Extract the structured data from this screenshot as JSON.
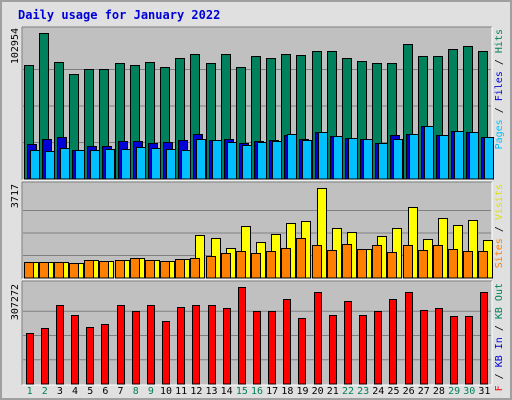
{
  "chart_data": [
    {
      "type": "bar",
      "title": "Daily usage for January 2022",
      "categories": [
        "1",
        "2",
        "3",
        "4",
        "5",
        "6",
        "7",
        "8",
        "9",
        "10",
        "11",
        "12",
        "13",
        "14",
        "15",
        "16",
        "17",
        "18",
        "19",
        "20",
        "21",
        "22",
        "23",
        "24",
        "25",
        "26",
        "27",
        "28",
        "29",
        "30",
        "31"
      ],
      "weekend_days": [
        "1",
        "2",
        "8",
        "9",
        "15",
        "16",
        "22",
        "23",
        "29",
        "30"
      ],
      "ymax_label": "102954",
      "ylim": [
        0,
        102954
      ],
      "side_label": [
        "Pages",
        "Files",
        "Hits"
      ],
      "side_separator": " / ",
      "series": [
        {
          "name": "Hits",
          "color": "#00805c",
          "values": [
            80600,
            102954,
            82200,
            73800,
            77700,
            77400,
            81800,
            80700,
            82200,
            78700,
            85600,
            88300,
            81600,
            88300,
            79000,
            86500,
            85400,
            88300,
            87600,
            90100,
            90600,
            85000,
            83100,
            81900,
            81900,
            95000,
            87000,
            87000,
            91700,
            93800,
            90300
          ]
        },
        {
          "name": "Files",
          "color": "#0000d8",
          "values": [
            24400,
            28200,
            29300,
            20700,
            23300,
            23200,
            26800,
            26700,
            25400,
            26300,
            27400,
            31600,
            27600,
            28000,
            25500,
            26500,
            27300,
            31200,
            28500,
            33000,
            30100,
            29000,
            28500,
            25300,
            31100,
            31700,
            37300,
            31300,
            33600,
            33100,
            29300
          ]
        },
        {
          "name": "Pages",
          "color": "#00c0ff",
          "values": [
            20100,
            19400,
            22000,
            20700,
            20300,
            21100,
            21000,
            22400,
            21700,
            21400,
            20100,
            28000,
            27600,
            26400,
            23900,
            26400,
            26500,
            31600,
            27600,
            33000,
            30100,
            29000,
            28500,
            25300,
            28000,
            31700,
            37300,
            31300,
            33600,
            33100,
            29300
          ]
        }
      ]
    },
    {
      "type": "bar",
      "ymax_label": "3717",
      "ylim": [
        0,
        3717
      ],
      "side_label": [
        "Sites",
        "Visits"
      ],
      "side_separator": " / ",
      "series": [
        {
          "name": "Visits",
          "color": "#ffff00",
          "values": [
            680,
            680,
            680,
            620,
            760,
            720,
            760,
            840,
            740,
            700,
            800,
            1760,
            1660,
            1250,
            2150,
            1500,
            1830,
            2280,
            2360,
            3717,
            2070,
            1890,
            1180,
            1730,
            2080,
            2930,
            1620,
            2480,
            2180,
            2380,
            1560
          ]
        },
        {
          "name": "Sites",
          "color": "#ff8000",
          "values": [
            680,
            680,
            680,
            620,
            760,
            720,
            760,
            840,
            740,
            700,
            800,
            820,
            920,
            1050,
            1120,
            1050,
            1130,
            1240,
            1670,
            1380,
            1170,
            1390,
            1180,
            1370,
            1080,
            1380,
            1160,
            1360,
            1200,
            1110,
            1100
          ]
        }
      ]
    },
    {
      "type": "bar",
      "ymax_label": "307272",
      "ylim": [
        0,
        307272
      ],
      "side_label": [
        "KB F",
        "KB In",
        "KB Out"
      ],
      "side_separator": " / ",
      "series": [
        {
          "name": "KB F",
          "color": "#ff0000",
          "values": [
            162000,
            178000,
            250000,
            220000,
            181000,
            190000,
            250000,
            230000,
            250000,
            199000,
            243000,
            250000,
            250000,
            240000,
            307272,
            230000,
            232000,
            270000,
            210000,
            290000,
            220000,
            263000,
            220000,
            230000,
            270000,
            290000,
            235000,
            240000,
            215000,
            215000,
            290000
          ]
        }
      ]
    }
  ]
}
